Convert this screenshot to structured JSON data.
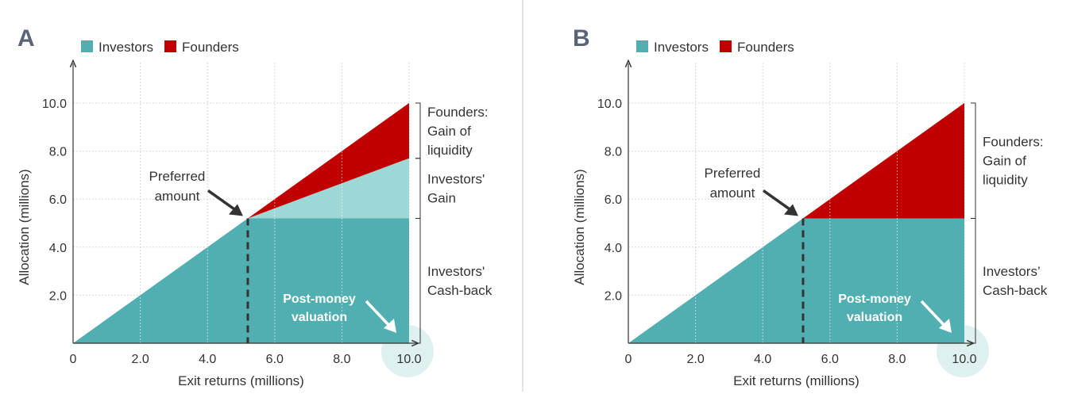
{
  "colors": {
    "investors": "#52afb1",
    "investors_gain": "#9dd8d6",
    "founders": "#c00000",
    "highlight": "#dff0f0",
    "axis": "#333333",
    "grid": "#d8d8d8",
    "panel_letter": "#5a6478"
  },
  "chart_data": [
    {
      "type": "area",
      "panel": "A",
      "legend": [
        {
          "label": "Investors",
          "color": "#52afb1"
        },
        {
          "label": "Founders",
          "color": "#c00000"
        }
      ],
      "xlabel": "Exit returns (millions)",
      "ylabel": "Allocation (millions)",
      "x_ticks": [
        "0",
        "2.0",
        "4.0",
        "6.0",
        "8.0",
        "10.0"
      ],
      "y_ticks": [
        "2.0",
        "4.0",
        "6.0",
        "8.0",
        "10.0"
      ],
      "xlim": [
        0,
        10
      ],
      "ylim": [
        0,
        10
      ],
      "grid": true,
      "preferred_amount": 5.2,
      "investors_gain_top": 7.7,
      "series": [
        {
          "name": "Investors",
          "x": [
            0,
            5.2,
            10
          ],
          "y": [
            0,
            5.2,
            5.2
          ]
        },
        {
          "x": [
            5.2,
            10
          ],
          "y": [
            5.2,
            7.7
          ]
        },
        {
          "name": "Founders",
          "x": [
            5.2,
            10
          ],
          "y": [
            5.2,
            10
          ]
        }
      ],
      "annotations": {
        "preferred": [
          "Preferred",
          "amount"
        ],
        "post_money": [
          "Post-money",
          "valuation"
        ],
        "brackets": [
          {
            "from": 7.7,
            "to": 10,
            "lines": [
              "Founders:",
              "Gain of",
              "liquidity"
            ]
          },
          {
            "from": 5.2,
            "to": 7.7,
            "lines": [
              "Investors'",
              "Gain"
            ]
          },
          {
            "from": 0,
            "to": 5.2,
            "lines": [
              "Investors'",
              "Cash-back"
            ]
          }
        ]
      }
    },
    {
      "type": "area",
      "panel": "B",
      "legend": [
        {
          "label": "Investors",
          "color": "#52afb1"
        },
        {
          "label": "Founders",
          "color": "#c00000"
        }
      ],
      "xlabel": "Exit returns (millions)",
      "ylabel": "Allocation (millions)",
      "x_ticks": [
        "0",
        "2.0",
        "4.0",
        "6.0",
        "8.0",
        "10.0"
      ],
      "y_ticks": [
        "2.0",
        "4.0",
        "6.0",
        "8.0",
        "10.0"
      ],
      "xlim": [
        0,
        10
      ],
      "ylim": [
        0,
        10
      ],
      "grid": true,
      "preferred_amount": 5.2,
      "investors_gain_top": null,
      "series": [
        {
          "name": "Investors",
          "x": [
            0,
            5.2,
            10
          ],
          "y": [
            0,
            5.2,
            5.2
          ]
        },
        {
          "name": "Founders",
          "x": [
            5.2,
            10
          ],
          "y": [
            5.2,
            10
          ]
        }
      ],
      "annotations": {
        "preferred": [
          "Preferred",
          "amount"
        ],
        "post_money": [
          "Post-money",
          "valuation"
        ],
        "brackets": [
          {
            "from": 5.2,
            "to": 10,
            "lines": [
              "Founders:",
              "Gain of",
              "liquidity"
            ]
          },
          {
            "from": 0,
            "to": 5.2,
            "lines": [
              "Investors’",
              "Cash-back"
            ]
          }
        ]
      }
    }
  ]
}
